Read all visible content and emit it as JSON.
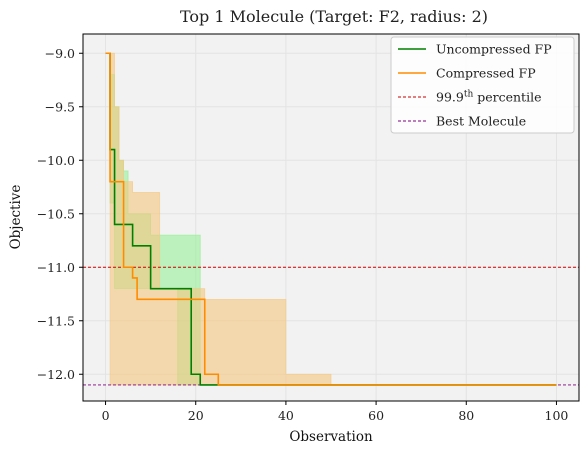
{
  "chart_data": {
    "type": "line",
    "title": "Top 1 Molecule (Target: F2, radius: 2)",
    "xlabel": "Observation",
    "ylabel": "Objective",
    "xlim": [
      -5,
      105
    ],
    "ylim": [
      -12.25,
      -8.82
    ],
    "xticks": [
      0,
      20,
      40,
      60,
      80,
      100
    ],
    "yticks": [
      -9.0,
      -9.5,
      -10.0,
      -10.5,
      -11.0,
      -11.5,
      -12.0
    ],
    "xtick_labels": [
      "0",
      "20",
      "40",
      "60",
      "80",
      "100"
    ],
    "ytick_labels": [
      "−9.0",
      "−9.5",
      "−10.0",
      "−10.5",
      "−11.0",
      "−11.5",
      "−12.0"
    ],
    "grid": true,
    "legend_position": "top-right",
    "series": [
      {
        "name": "Uncompressed FP",
        "color": "#008000",
        "band_color": "#90ee90",
        "x": [
          0,
          1,
          2,
          3,
          4,
          5,
          6,
          7,
          8,
          9,
          10,
          11,
          12,
          13,
          14,
          15,
          16,
          17,
          18,
          19,
          20,
          21,
          22,
          23,
          24,
          25,
          30,
          40,
          50,
          60,
          70,
          80,
          90,
          100
        ],
        "y": [
          -9.0,
          -9.9,
          -10.6,
          -10.6,
          -10.6,
          -10.6,
          -10.8,
          -10.8,
          -10.8,
          -10.8,
          -11.2,
          -11.2,
          -11.2,
          -11.2,
          -11.2,
          -11.2,
          -11.2,
          -11.2,
          -11.2,
          -12.0,
          -12.0,
          -12.1,
          -12.1,
          -12.1,
          -12.1,
          -12.1,
          -12.1,
          -12.1,
          -12.1,
          -12.1,
          -12.1,
          -12.1,
          -12.1,
          -12.1
        ],
        "lower": [
          -9.0,
          -10.4,
          -11.2,
          -11.2,
          -11.2,
          -11.2,
          -11.2,
          -11.2,
          -11.2,
          -11.2,
          -11.2,
          -11.2,
          -11.2,
          -11.2,
          -11.2,
          -11.2,
          -12.1,
          -12.1,
          -12.1,
          -12.1,
          -12.1,
          -12.1,
          -12.1,
          -12.1,
          -12.1,
          -12.1,
          -12.1,
          -12.1,
          -12.1,
          -12.1,
          -12.1,
          -12.1,
          -12.1,
          -12.1
        ],
        "upper": [
          -9.0,
          -9.2,
          -9.5,
          -10.0,
          -10.1,
          -10.5,
          -10.5,
          -10.5,
          -10.5,
          -10.5,
          -10.7,
          -10.7,
          -10.7,
          -10.7,
          -10.7,
          -10.7,
          -10.7,
          -10.7,
          -10.7,
          -10.7,
          -10.7,
          -12.1,
          -12.1,
          -12.1,
          -12.1,
          -12.1,
          -12.1,
          -12.1,
          -12.1,
          -12.1,
          -12.1,
          -12.1,
          -12.1,
          -12.1
        ]
      },
      {
        "name": "Compressed FP",
        "color": "#ff8c00",
        "band_color": "#f5c77e",
        "x": [
          0,
          1,
          2,
          3,
          4,
          5,
          6,
          7,
          8,
          9,
          10,
          11,
          12,
          13,
          14,
          15,
          16,
          17,
          18,
          19,
          20,
          21,
          22,
          23,
          24,
          25,
          30,
          40,
          50,
          60,
          70,
          80,
          90,
          100
        ],
        "y": [
          -9.0,
          -10.2,
          -10.2,
          -10.2,
          -11.0,
          -11.0,
          -11.1,
          -11.3,
          -11.3,
          -11.3,
          -11.3,
          -11.3,
          -11.3,
          -11.3,
          -11.3,
          -11.3,
          -11.3,
          -11.3,
          -11.3,
          -11.3,
          -11.3,
          -11.3,
          -12.0,
          -12.0,
          -12.0,
          -12.1,
          -12.1,
          -12.1,
          -12.1,
          -12.1,
          -12.1,
          -12.1,
          -12.1,
          -12.1
        ],
        "lower": [
          -9.0,
          -12.1,
          -12.1,
          -12.1,
          -12.1,
          -12.1,
          -12.1,
          -12.1,
          -12.1,
          -12.1,
          -12.1,
          -12.1,
          -12.1,
          -12.1,
          -12.1,
          -12.1,
          -12.1,
          -12.1,
          -12.1,
          -12.1,
          -12.1,
          -12.1,
          -12.1,
          -12.1,
          -12.1,
          -12.1,
          -12.1,
          -12.1,
          -12.1,
          -12.1,
          -12.1,
          -12.1,
          -12.1,
          -12.1
        ],
        "upper": [
          -9.0,
          -9.0,
          -9.5,
          -10.0,
          -10.2,
          -10.2,
          -10.3,
          -10.3,
          -10.3,
          -10.3,
          -10.3,
          -10.3,
          -11.2,
          -11.2,
          -11.2,
          -11.2,
          -11.2,
          -11.2,
          -11.2,
          -11.2,
          -11.2,
          -11.2,
          -11.3,
          -11.3,
          -11.3,
          -11.3,
          -11.3,
          -12.0,
          -12.1,
          -12.1,
          -12.1,
          -12.1,
          -12.1,
          -12.1
        ]
      }
    ],
    "reference_lines": [
      {
        "name": "99.9",
        "name_sup": "th",
        "name_suffix": " percentile",
        "y": -11.0,
        "color": "#cc0000"
      },
      {
        "name": "Best Molecule",
        "y": -12.1,
        "color": "#800080"
      }
    ]
  }
}
